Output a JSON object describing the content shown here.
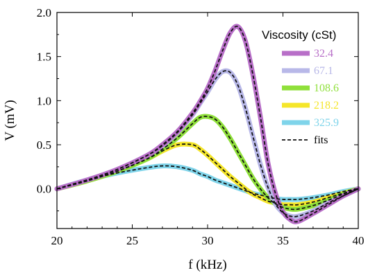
{
  "chart_data": {
    "type": "line",
    "xlabel": "f (kHz)",
    "ylabel": "V (mV)",
    "xlim": [
      20,
      40
    ],
    "ylim": [
      -0.45,
      2.0
    ],
    "x_ticks": [
      "20",
      "25",
      "30",
      "35",
      "40"
    ],
    "y_ticks": [
      "0.0",
      "0.5",
      "1.0",
      "1.5",
      "2.0"
    ],
    "legend": {
      "title": "Viscosity (cSt)",
      "placement": "top-right",
      "fits_label": "fits"
    },
    "series": [
      {
        "name": "32.4",
        "color": "#b86fc8",
        "x": [
          20,
          22,
          24,
          26,
          27,
          28,
          29,
          29.5,
          30,
          30.5,
          31,
          31.5,
          32,
          32.5,
          33,
          33.5,
          34,
          34.5,
          35,
          35.5,
          36,
          37,
          38,
          39,
          40
        ],
        "y": [
          0.0,
          0.1,
          0.22,
          0.38,
          0.5,
          0.65,
          0.86,
          0.99,
          1.14,
          1.34,
          1.57,
          1.77,
          1.84,
          1.68,
          1.3,
          0.82,
          0.3,
          -0.05,
          -0.26,
          -0.35,
          -0.37,
          -0.28,
          -0.18,
          -0.08,
          0.0
        ]
      },
      {
        "name": "67.1",
        "color": "#b8b8e8",
        "x": [
          20,
          22,
          24,
          26,
          27,
          28,
          29,
          29.5,
          30,
          30.5,
          31,
          31.5,
          32,
          32.5,
          33,
          33.5,
          34,
          34.5,
          35,
          35.5,
          36,
          37,
          38,
          39,
          40
        ],
        "y": [
          0.0,
          0.1,
          0.22,
          0.38,
          0.49,
          0.64,
          0.84,
          0.97,
          1.1,
          1.24,
          1.33,
          1.32,
          1.18,
          0.92,
          0.6,
          0.28,
          0.02,
          -0.17,
          -0.27,
          -0.31,
          -0.31,
          -0.25,
          -0.16,
          -0.08,
          0.0
        ]
      },
      {
        "name": "108.6",
        "color": "#8fe03a",
        "x": [
          20,
          22,
          24,
          26,
          27,
          28,
          29,
          29.5,
          30,
          30.5,
          31,
          31.5,
          32,
          32.5,
          33,
          33.5,
          34,
          34.5,
          35,
          35.5,
          36,
          37,
          38,
          39,
          40
        ],
        "y": [
          0.0,
          0.09,
          0.2,
          0.34,
          0.45,
          0.58,
          0.74,
          0.81,
          0.82,
          0.79,
          0.7,
          0.57,
          0.42,
          0.27,
          0.12,
          0.0,
          -0.1,
          -0.17,
          -0.21,
          -0.23,
          -0.23,
          -0.19,
          -0.13,
          -0.06,
          0.0
        ]
      },
      {
        "name": "218.2",
        "color": "#f5e62a",
        "x": [
          20,
          22,
          24,
          26,
          27,
          28,
          29,
          29.5,
          30,
          30.5,
          31,
          31.5,
          32,
          32.5,
          33,
          33.5,
          34,
          34.5,
          35,
          35.5,
          36,
          37,
          38,
          39,
          40
        ],
        "y": [
          0.0,
          0.09,
          0.2,
          0.34,
          0.43,
          0.5,
          0.5,
          0.45,
          0.38,
          0.3,
          0.22,
          0.14,
          0.07,
          0.0,
          -0.06,
          -0.1,
          -0.14,
          -0.16,
          -0.18,
          -0.18,
          -0.18,
          -0.15,
          -0.1,
          -0.05,
          0.0
        ]
      },
      {
        "name": "325.9",
        "color": "#7fd4ea",
        "x": [
          20,
          22,
          24,
          26,
          27,
          28,
          29,
          29.5,
          30,
          30.5,
          31,
          31.5,
          32,
          32.5,
          33,
          33.5,
          34,
          34.5,
          35,
          35.5,
          36,
          37,
          38,
          39,
          40
        ],
        "y": [
          0.0,
          0.1,
          0.18,
          0.24,
          0.26,
          0.25,
          0.21,
          0.17,
          0.14,
          0.1,
          0.07,
          0.04,
          0.01,
          -0.02,
          -0.05,
          -0.07,
          -0.09,
          -0.11,
          -0.12,
          -0.12,
          -0.12,
          -0.1,
          -0.07,
          -0.03,
          0.0
        ]
      }
    ]
  }
}
